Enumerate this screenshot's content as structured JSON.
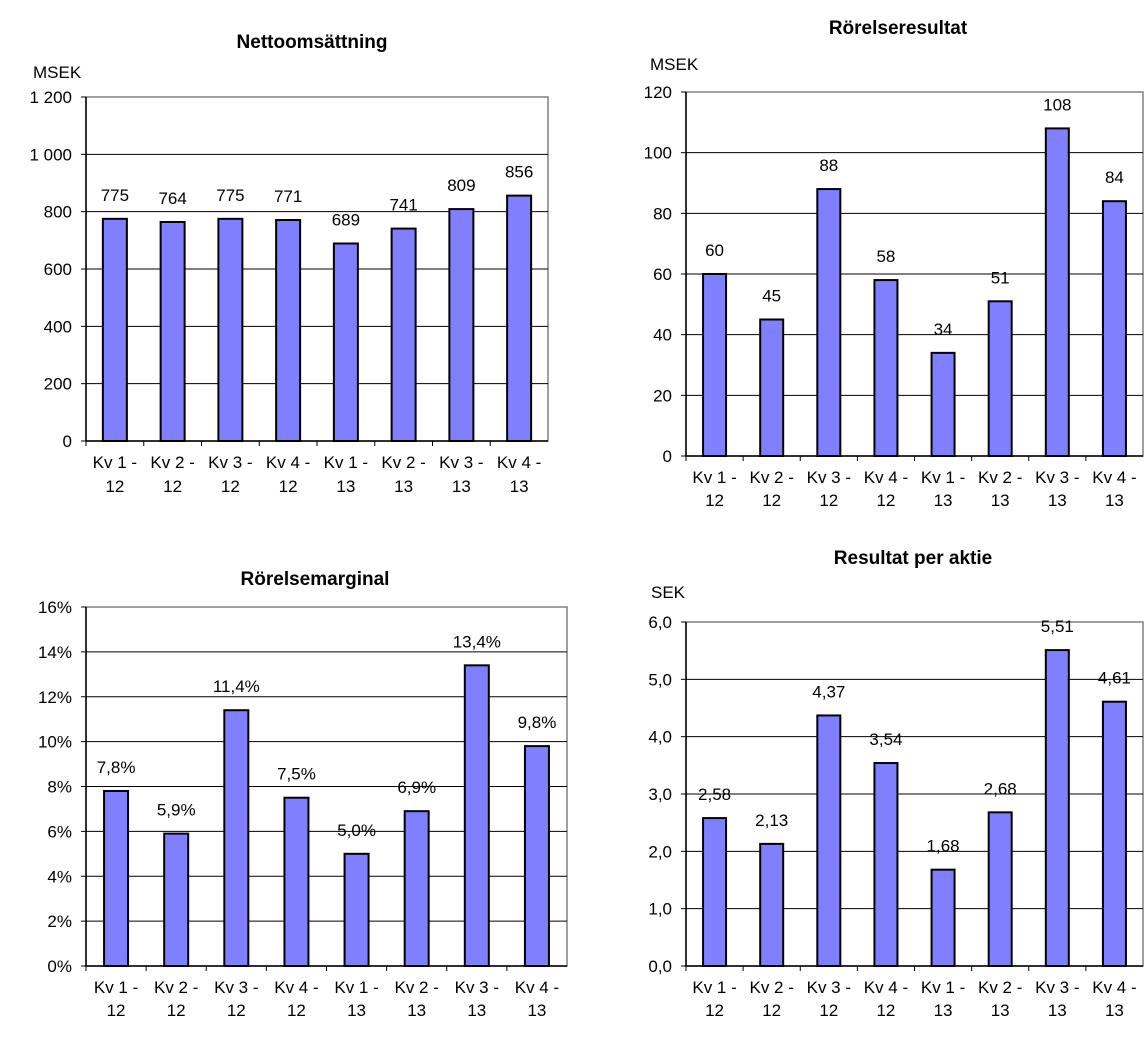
{
  "colors": {
    "bar_fill": "#8080ff",
    "bar_stroke": "#000000",
    "axis": "#000000",
    "frame": "#808080",
    "grid": "#000000"
  },
  "chart_data": [
    {
      "type": "bar",
      "title": "Nettoomsättning",
      "ylabel": "MSEK",
      "categories": [
        [
          "Kv 1 -",
          "12"
        ],
        [
          "Kv 2 -",
          "12"
        ],
        [
          "Kv 3 -",
          "12"
        ],
        [
          "Kv 4 -",
          "12"
        ],
        [
          "Kv 1 -",
          "13"
        ],
        [
          "Kv 2 -",
          "13"
        ],
        [
          "Kv 3 -",
          "13"
        ],
        [
          "Kv 4 -",
          "13"
        ]
      ],
      "values": [
        775,
        764,
        775,
        771,
        689,
        741,
        809,
        856
      ],
      "value_labels": [
        "775",
        "764",
        "775",
        "771",
        "689",
        "741",
        "809",
        "856"
      ],
      "ylim": [
        0,
        1200
      ],
      "yticks": [
        0,
        200,
        400,
        600,
        800,
        1000,
        1200
      ],
      "ytick_labels": [
        "0",
        "200",
        "400",
        "600",
        "800",
        "1 000",
        "1 200"
      ],
      "grid": true,
      "legend": "none"
    },
    {
      "type": "bar",
      "title": "Rörelseresultat",
      "ylabel": "MSEK",
      "categories": [
        [
          "Kv 1 -",
          "12"
        ],
        [
          "Kv 2 -",
          "12"
        ],
        [
          "Kv 3 -",
          "12"
        ],
        [
          "Kv 4 -",
          "12"
        ],
        [
          "Kv 1 -",
          "13"
        ],
        [
          "Kv 2 -",
          "13"
        ],
        [
          "Kv 3 -",
          "13"
        ],
        [
          "Kv 4 -",
          "13"
        ]
      ],
      "values": [
        60,
        45,
        88,
        58,
        34,
        51,
        108,
        84
      ],
      "value_labels": [
        "60",
        "45",
        "88",
        "58",
        "34",
        "51",
        "108",
        "84"
      ],
      "ylim": [
        0,
        120
      ],
      "yticks": [
        0,
        20,
        40,
        60,
        80,
        100,
        120
      ],
      "ytick_labels": [
        "0",
        "20",
        "40",
        "60",
        "80",
        "100",
        "120"
      ],
      "grid": true,
      "legend": "none"
    },
    {
      "type": "bar",
      "title": "Rörelsemarginal",
      "ylabel": "",
      "categories": [
        [
          "Kv 1 -",
          "12"
        ],
        [
          "Kv 2 -",
          "12"
        ],
        [
          "Kv 3 -",
          "12"
        ],
        [
          "Kv 4 -",
          "12"
        ],
        [
          "Kv 1 -",
          "13"
        ],
        [
          "Kv 2 -",
          "13"
        ],
        [
          "Kv 3 -",
          "13"
        ],
        [
          "Kv 4 -",
          "13"
        ]
      ],
      "values": [
        7.8,
        5.9,
        11.4,
        7.5,
        5.0,
        6.9,
        13.4,
        9.8
      ],
      "value_labels": [
        "7,8%",
        "5,9%",
        "11,4%",
        "7,5%",
        "5,0%",
        "6,9%",
        "13,4%",
        "9,8%"
      ],
      "ylim": [
        0,
        16
      ],
      "yticks": [
        0,
        2,
        4,
        6,
        8,
        10,
        12,
        14,
        16
      ],
      "ytick_labels": [
        "0%",
        "2%",
        "4%",
        "6%",
        "8%",
        "10%",
        "12%",
        "14%",
        "16%"
      ],
      "grid": true,
      "legend": "none"
    },
    {
      "type": "bar",
      "title": "Resultat per aktie",
      "ylabel": "SEK",
      "categories": [
        [
          "Kv 1 -",
          "12"
        ],
        [
          "Kv 2 -",
          "12"
        ],
        [
          "Kv 3 -",
          "12"
        ],
        [
          "Kv 4 -",
          "12"
        ],
        [
          "Kv 1 -",
          "13"
        ],
        [
          "Kv 2 -",
          "13"
        ],
        [
          "Kv 3 -",
          "13"
        ],
        [
          "Kv 4 -",
          "13"
        ]
      ],
      "values": [
        2.58,
        2.13,
        4.37,
        3.54,
        1.68,
        2.68,
        5.51,
        4.61
      ],
      "value_labels": [
        "2,58",
        "2,13",
        "4,37",
        "3,54",
        "1,68",
        "2,68",
        "5,51",
        "4,61"
      ],
      "ylim": [
        0,
        6
      ],
      "yticks": [
        0,
        1,
        2,
        3,
        4,
        5,
        6
      ],
      "ytick_labels": [
        "0,0",
        "1,0",
        "2,0",
        "3,0",
        "4,0",
        "5,0",
        "6,0"
      ],
      "grid": true,
      "legend": "none"
    }
  ]
}
